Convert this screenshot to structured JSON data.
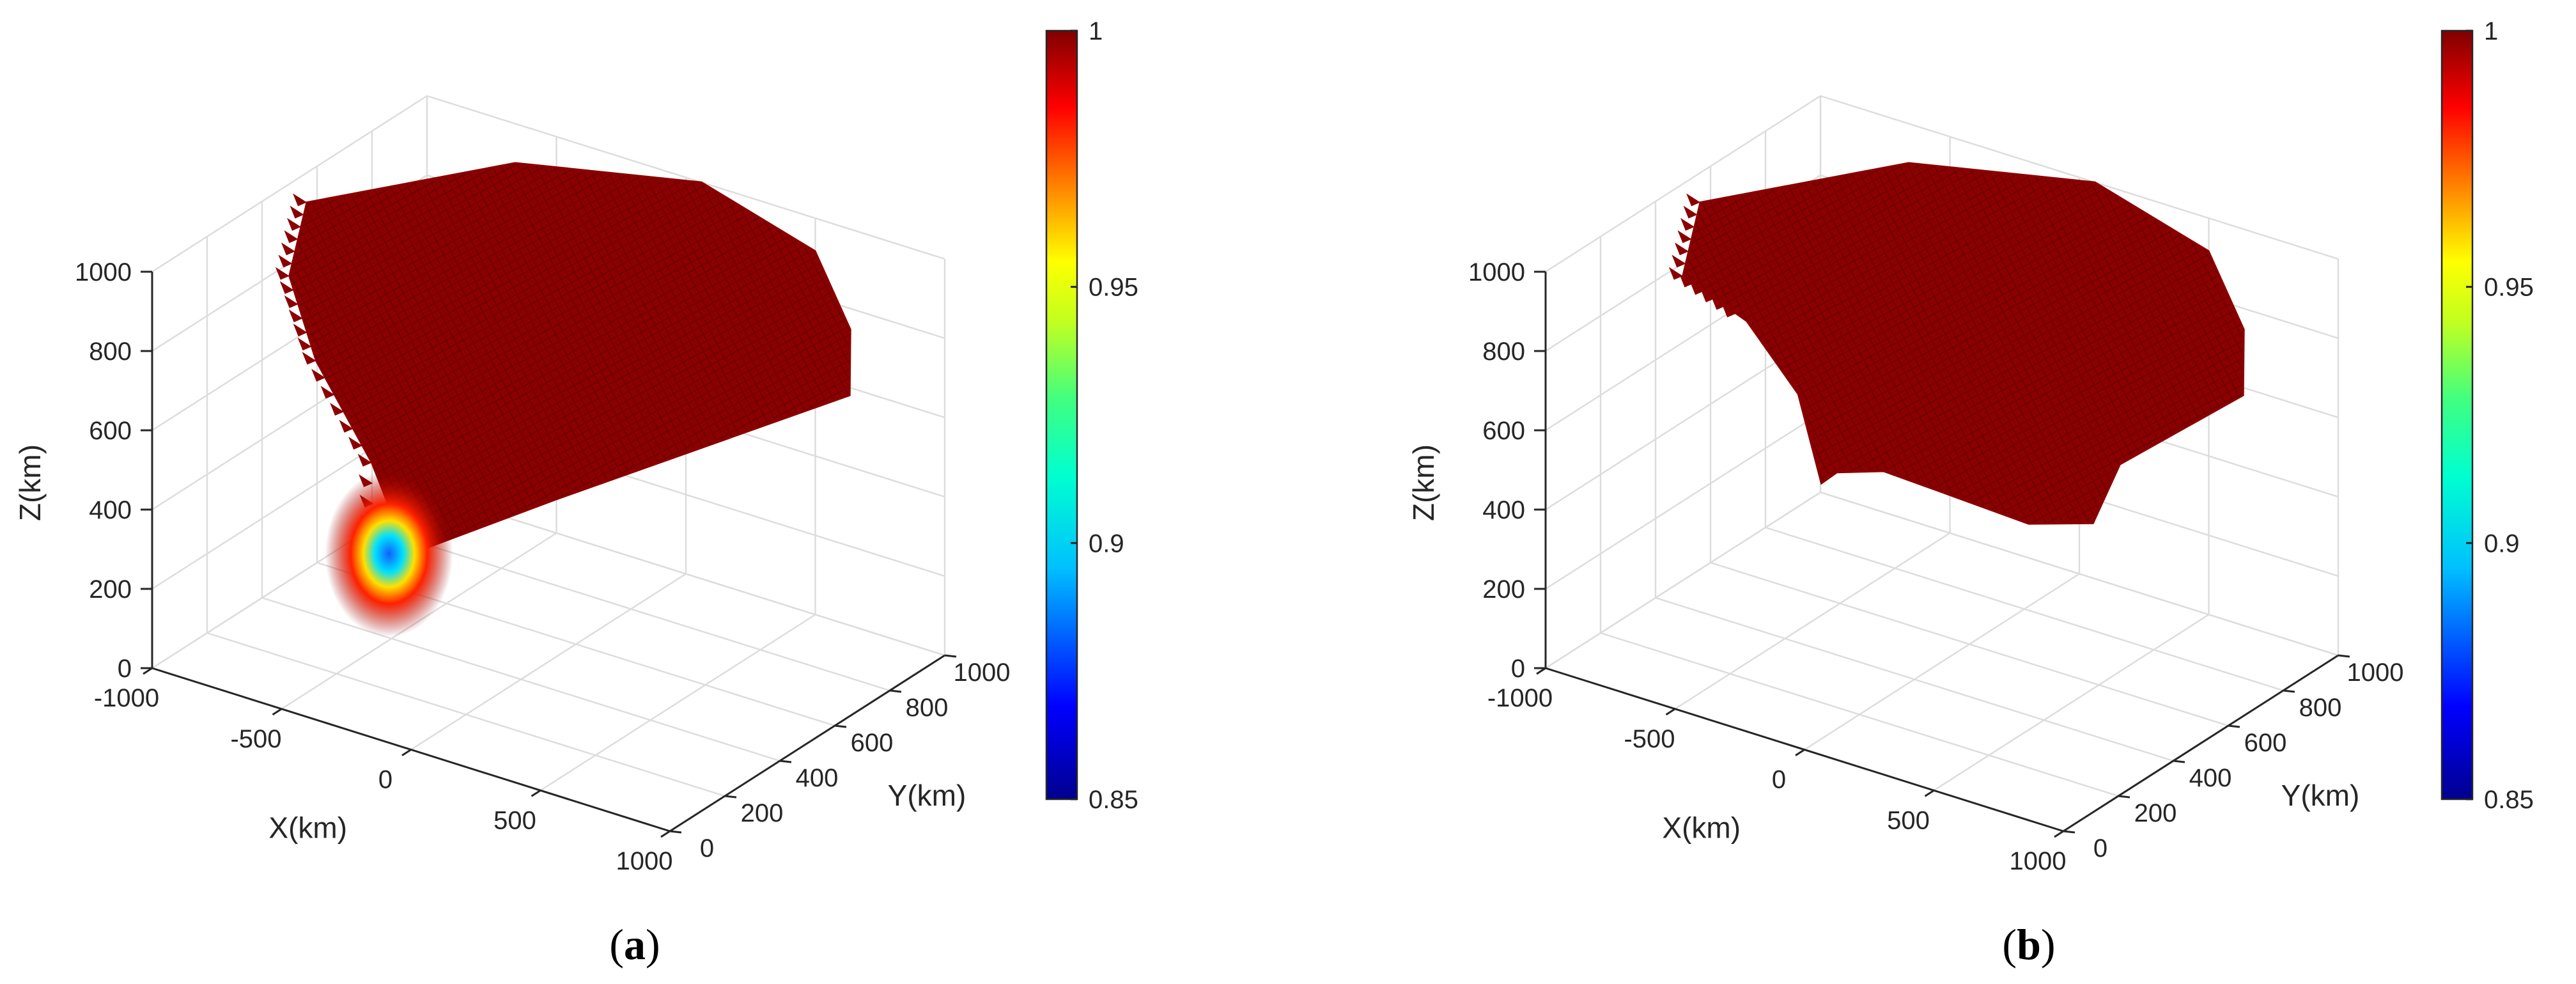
{
  "chart_data": [
    {
      "type": "surface3d",
      "panel_label": "a",
      "xlabel": "X(km)",
      "ylabel": "Y(km)",
      "zlabel": "Z(km)",
      "xlim": [
        -1000,
        1000
      ],
      "ylim": [
        0,
        1000
      ],
      "zlim": [
        0,
        1000
      ],
      "x_ticks": [
        "-1000",
        "-500",
        "0",
        "500",
        "1000"
      ],
      "y_ticks": [
        "0",
        "200",
        "400",
        "600",
        "800",
        "1000"
      ],
      "z_ticks": [
        "0",
        "200",
        "400",
        "600",
        "800",
        "1000"
      ],
      "colorbar": {
        "min": 0.85,
        "max": 1,
        "ticks": [
          "0.85",
          "0.9",
          "0.95",
          "1"
        ],
        "colormap": "jet"
      },
      "grid": true,
      "surface": "dome-shaped coverage shell, value ~1 nearly everywhere, dropping to ~0.85 near the point closest to the origin"
    },
    {
      "type": "surface3d",
      "panel_label": "b",
      "xlabel": "X(km)",
      "ylabel": "Y(km)",
      "zlabel": "Z(km)",
      "xlim": [
        -1000,
        1000
      ],
      "ylim": [
        0,
        1000
      ],
      "zlim": [
        0,
        1000
      ],
      "x_ticks": [
        "-1000",
        "-500",
        "0",
        "500",
        "1000"
      ],
      "y_ticks": [
        "0",
        "200",
        "400",
        "600",
        "800",
        "1000"
      ],
      "z_ticks": [
        "0",
        "200",
        "400",
        "600",
        "800",
        "1000"
      ],
      "colorbar": {
        "min": 0.85,
        "max": 1,
        "ticks": [
          "0.85",
          "0.9",
          "0.95",
          "1"
        ],
        "colormap": "jet"
      },
      "grid": true,
      "surface": "dome-shaped coverage shell with arched cut-outs, value ~1 everywhere"
    }
  ],
  "colors": {
    "surface": "#8b0000",
    "axis": "#262626",
    "grid": "#dcdcdc"
  }
}
